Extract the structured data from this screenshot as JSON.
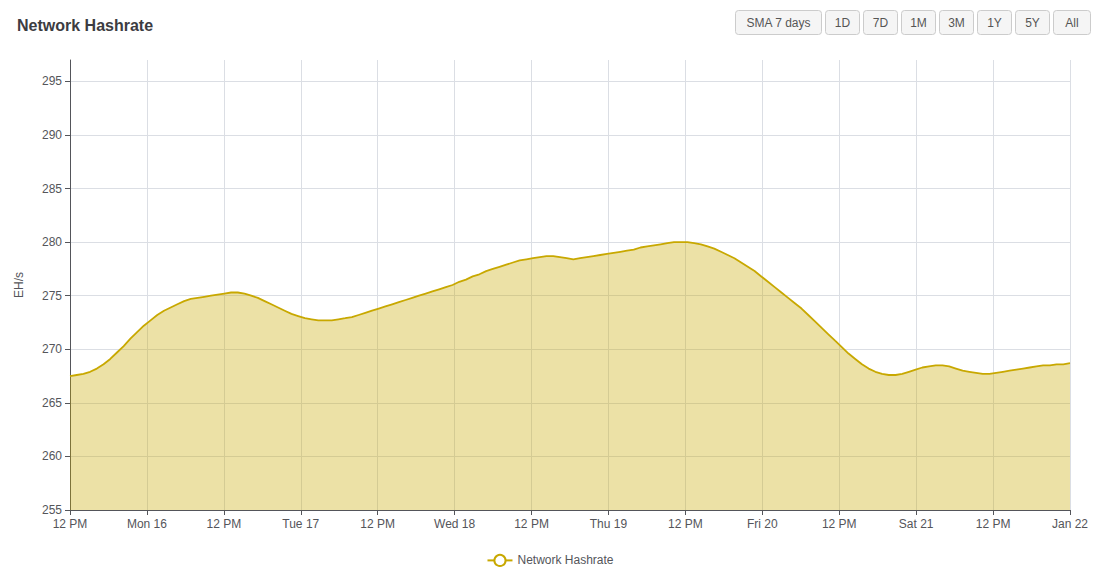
{
  "chart_data": {
    "type": "area",
    "title": "Network Hashrate",
    "ylabel": "EH/s",
    "annotations": [
      "SMA 7 days",
      "1D",
      "7D",
      "1M",
      "3M",
      "1Y",
      "5Y",
      "All"
    ],
    "legend": "bottom",
    "grid": true,
    "xlim": [
      0,
      13
    ],
    "xticks": [
      {
        "value": 0,
        "label": "12 PM"
      },
      {
        "value": 1,
        "label": "Mon 16"
      },
      {
        "value": 2,
        "label": "12 PM"
      },
      {
        "value": 3,
        "label": "Tue 17"
      },
      {
        "value": 4,
        "label": "12 PM"
      },
      {
        "value": 5,
        "label": "Wed 18"
      },
      {
        "value": 6,
        "label": "12 PM"
      },
      {
        "value": 7,
        "label": "Thu 19"
      },
      {
        "value": 8,
        "label": "12 PM"
      },
      {
        "value": 9,
        "label": "Fri 20"
      },
      {
        "value": 10,
        "label": "12 PM"
      },
      {
        "value": 11,
        "label": "Sat 21"
      },
      {
        "value": 12,
        "label": "12 PM"
      },
      {
        "value": 13,
        "label": "Jan 22"
      }
    ],
    "ylim": [
      255,
      297
    ],
    "yticks": [
      255,
      260,
      265,
      270,
      275,
      280,
      285,
      290,
      295
    ],
    "x": [
      0,
      0.0872,
      0.1745,
      0.2617,
      0.349,
      0.4362,
      0.5235,
      0.6107,
      0.698,
      0.7852,
      0.8725,
      0.9597,
      1.047,
      1.1342,
      1.2215,
      1.3087,
      1.396,
      1.4832,
      1.5705,
      1.6577,
      1.745,
      1.8322,
      1.9195,
      2.0067,
      2.094,
      2.1812,
      2.2685,
      2.3557,
      2.443,
      2.5302,
      2.6174,
      2.7047,
      2.7919,
      2.8792,
      2.9664,
      3.0537,
      3.1409,
      3.2282,
      3.3154,
      3.4027,
      3.4899,
      3.5772,
      3.6644,
      3.7517,
      3.8389,
      3.9262,
      4.0134,
      4.1007,
      4.1879,
      4.2752,
      4.3624,
      4.4497,
      4.5369,
      4.6242,
      4.7114,
      4.7987,
      4.8859,
      4.9732,
      5.0604,
      5.1477,
      5.2349,
      5.3221,
      5.4094,
      5.4966,
      5.5839,
      5.6711,
      5.7584,
      5.8456,
      5.9329,
      6.0201,
      6.1074,
      6.1946,
      6.2819,
      6.3691,
      6.4564,
      6.5436,
      6.6309,
      6.7181,
      6.8054,
      6.8926,
      6.9799,
      7.0671,
      7.1544,
      7.2416,
      7.3289,
      7.4161,
      7.5034,
      7.5906,
      7.6779,
      7.7651,
      7.8523,
      7.9396,
      8.0268,
      8.1141,
      8.2013,
      8.2886,
      8.3758,
      8.4631,
      8.5503,
      8.6376,
      8.7248,
      8.8121,
      8.8993,
      8.9866,
      9.0738,
      9.1611,
      9.2483,
      9.3356,
      9.4228,
      9.5101,
      9.5973,
      9.6846,
      9.7718,
      9.8591,
      9.9463,
      10.0336,
      10.1208,
      10.2081,
      10.2953,
      10.3826,
      10.4698,
      10.557,
      10.6443,
      10.7315,
      10.8188,
      10.906,
      10.9933,
      11.0805,
      11.1678,
      11.255,
      11.3423,
      11.4295,
      11.5168,
      11.604,
      11.6913,
      11.7785,
      11.8658,
      11.953,
      12.0403,
      12.1275,
      12.2148,
      12.302,
      12.3893,
      12.4765,
      12.5638,
      12.651,
      12.7383,
      12.8255,
      12.9128,
      13
    ],
    "series": [
      {
        "name": "Network Hashrate",
        "color": "#c8a800",
        "values": [
          267.5,
          267.6,
          267.7,
          267.9,
          268.2,
          268.6,
          269.1,
          269.7,
          270.3,
          271.0,
          271.6,
          272.2,
          272.7,
          273.2,
          273.6,
          273.9,
          274.2,
          274.5,
          274.7,
          274.8,
          274.9,
          275.0,
          275.1,
          275.2,
          275.3,
          275.3,
          275.2,
          275.0,
          274.8,
          274.5,
          274.2,
          273.9,
          273.6,
          273.3,
          273.1,
          272.9,
          272.8,
          272.7,
          272.7,
          272.7,
          272.8,
          272.9,
          273.0,
          273.2,
          273.4,
          273.6,
          273.8,
          274.0,
          274.2,
          274.4,
          274.6,
          274.8,
          275.0,
          275.2,
          275.4,
          275.6,
          275.8,
          276.0,
          276.3,
          276.5,
          276.8,
          277.0,
          277.3,
          277.5,
          277.7,
          277.9,
          278.1,
          278.3,
          278.4,
          278.5,
          278.6,
          278.7,
          278.7,
          278.6,
          278.5,
          278.4,
          278.5,
          278.6,
          278.7,
          278.8,
          278.9,
          279.0,
          279.1,
          279.2,
          279.3,
          279.5,
          279.6,
          279.7,
          279.8,
          279.9,
          280.0,
          280.0,
          280.0,
          279.9,
          279.8,
          279.6,
          279.4,
          279.1,
          278.8,
          278.5,
          278.1,
          277.7,
          277.3,
          276.8,
          276.3,
          275.8,
          275.3,
          274.8,
          274.3,
          273.8,
          273.2,
          272.6,
          272.0,
          271.4,
          270.8,
          270.2,
          269.6,
          269.1,
          268.6,
          268.2,
          267.9,
          267.7,
          267.6,
          267.6,
          267.7,
          267.9,
          268.1,
          268.3,
          268.4,
          268.5,
          268.5,
          268.4,
          268.2,
          268.0,
          267.9,
          267.8,
          267.7,
          267.7,
          267.8,
          267.9,
          268.0,
          268.1,
          268.2,
          268.3,
          268.4,
          268.5,
          268.5,
          268.6,
          268.6,
          268.7
        ]
      }
    ]
  }
}
